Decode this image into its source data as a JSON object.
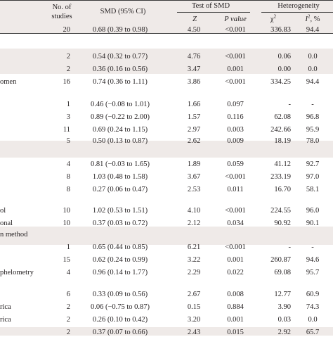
{
  "header": {
    "no_studies_line1": "No. of",
    "no_studies_line2": "studies",
    "smd_ci": "SMD (95% CI)",
    "test_of_smd": "Test of SMD",
    "z": "Z",
    "p_value": "P value",
    "heterogeneity": "Heterogeneity",
    "chi_sq": "χ",
    "chi_sup": "2",
    "i_sq_prefix": "I",
    "i_sq_sup": "2",
    "i_sq_suffix": ", %"
  },
  "rows": [
    {
      "label": "",
      "n": "20",
      "smd": "0.68 (0.39 to 0.98)",
      "z": "4.50",
      "p": "<0.001",
      "chi": "336.83",
      "i2": "94.4"
    },
    {
      "label": "",
      "n": "2",
      "smd": "0.54 (0.32 to 0.77)",
      "z": "4.76",
      "p": "<0.001",
      "chi": "0.06",
      "i2": "0.0"
    },
    {
      "label": "",
      "n": "2",
      "smd": "0.36 (0.16 to 0.56)",
      "z": "3.47",
      "p": "0.001",
      "chi": "0.00",
      "i2": "0.0"
    },
    {
      "label": "omen",
      "n": "16",
      "smd": "0.74 (0.36 to 1.11)",
      "z": "3.86",
      "p": "<0.001",
      "chi": "334.25",
      "i2": "94.4"
    },
    {
      "label": "",
      "n": "1",
      "smd": "0.46 (−0.08 to 1.01)",
      "z": "1.66",
      "p": "0.097",
      "chi": "-",
      "i2": "-"
    },
    {
      "label": "",
      "n": "3",
      "smd": "0.89 (−0.22 to 2.00)",
      "z": "1.57",
      "p": "0.116",
      "chi": "62.08",
      "i2": "96.8"
    },
    {
      "label": "",
      "n": "11",
      "smd": "0.69 (0.24 to 1.15)",
      "z": "2.97",
      "p": "0.003",
      "chi": "242.66",
      "i2": "95.9"
    },
    {
      "label": "",
      "n": "5",
      "smd": "0.50 (0.13 to 0.87)",
      "z": "2.62",
      "p": "0.009",
      "chi": "18.19",
      "i2": "78.0"
    },
    {
      "label": "",
      "n": "4",
      "smd": "0.81 (−0.03 to 1.65)",
      "z": "1.89",
      "p": "0.059",
      "chi": "41.12",
      "i2": "92.7"
    },
    {
      "label": "",
      "n": "8",
      "smd": "1.03 (0.48 to 1.58)",
      "z": "3.67",
      "p": "<0.001",
      "chi": "233.19",
      "i2": "97.0"
    },
    {
      "label": "",
      "n": "8",
      "smd": "0.27 (0.06 to 0.47)",
      "z": "2.53",
      "p": "0.011",
      "chi": "16.70",
      "i2": "58.1"
    },
    {
      "label": "ol",
      "n": "10",
      "smd": "1.02 (0.53 to 1.51)",
      "z": "4.10",
      "p": "<0.001",
      "chi": "224.55",
      "i2": "96.0"
    },
    {
      "label": "onal",
      "n": "10",
      "smd": "0.37 (0.03 to 0.72)",
      "z": "2.12",
      "p": "0.034",
      "chi": "90.92",
      "i2": "90.1"
    },
    {
      "label": "n method",
      "n": "",
      "smd": "",
      "z": "",
      "p": "",
      "chi": "",
      "i2": ""
    },
    {
      "label": "",
      "n": "1",
      "smd": "0.65 (0.44 to 0.85)",
      "z": "6.21",
      "p": "<0.001",
      "chi": "-",
      "i2": "-"
    },
    {
      "label": "",
      "n": "15",
      "smd": "0.62 (0.24 to 0.99)",
      "z": "3.22",
      "p": "0.001",
      "chi": "260.87",
      "i2": "94.6"
    },
    {
      "label": "phelometry",
      "n": "4",
      "smd": "0.96 (0.14 to 1.77)",
      "z": "2.29",
      "p": "0.022",
      "chi": "69.08",
      "i2": "95.7"
    },
    {
      "label": "",
      "n": "6",
      "smd": "0.33 (0.09 to 0.56)",
      "z": "2.67",
      "p": "0.008",
      "chi": "12.77",
      "i2": "60.9"
    },
    {
      "label": "rica",
      "n": "2",
      "smd": "0.06 (−0.75 to 0.87)",
      "z": "0.15",
      "p": "0.884",
      "chi": "3.90",
      "i2": "74.3"
    },
    {
      "label": "rica",
      "n": "2",
      "smd": "0.26 (0.10 to 0.42)",
      "z": "3.20",
      "p": "0.001",
      "chi": "0.03",
      "i2": "0.0"
    },
    {
      "label": "",
      "n": "2",
      "smd": "0.37 (0.07 to 0.66)",
      "z": "2.43",
      "p": "0.015",
      "chi": "2.92",
      "i2": "65.7"
    }
  ]
}
